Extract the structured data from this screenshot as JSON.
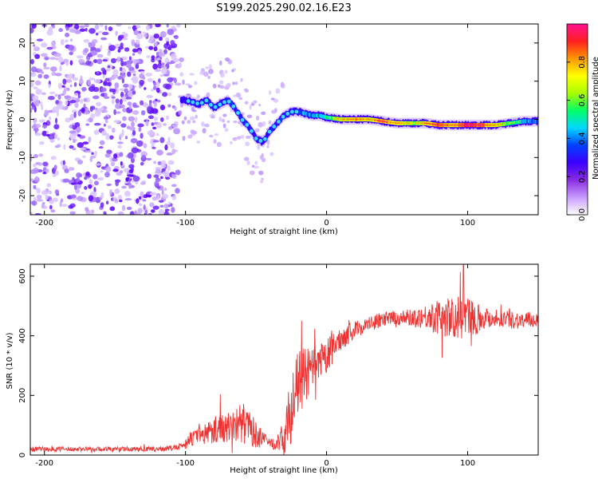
{
  "title": "S199.2025.290.02.16.E23",
  "chart_data": [
    {
      "type": "heatmap",
      "name": "spectrogram",
      "xlabel": "Height of straight line (km)",
      "ylabel": "Frequency (Hz)",
      "xlim": [
        -210,
        150
      ],
      "ylim": [
        -25,
        25
      ],
      "xticks": [
        -200,
        -100,
        0,
        100
      ],
      "yticks": [
        -20,
        -10,
        0,
        10,
        20
      ],
      "colorbar": {
        "label": "Normalized spectral amplitude",
        "range": [
          0,
          1
        ],
        "ticks": [
          "0.0",
          "0.2",
          "0.4",
          "0.6",
          "0.8"
        ],
        "colors": [
          "#ffffff",
          "#c89bff",
          "#8a2be2",
          "#3b00ff",
          "#0040ff",
          "#00d8ff",
          "#00ff66",
          "#a8ff00",
          "#ffff00",
          "#ff9900",
          "#ff2020",
          "#ff1090"
        ]
      },
      "noise_region_x": [
        -210,
        -105
      ],
      "ridge": {
        "x": [
          -100,
          -95,
          -90,
          -85,
          -80,
          -75,
          -70,
          -65,
          -60,
          -55,
          -50,
          -45,
          -40,
          -35,
          -30,
          -25,
          -20,
          -15,
          -10,
          -5,
          0,
          10,
          20,
          30,
          40,
          50,
          60,
          70,
          80,
          90,
          100,
          110,
          120,
          130,
          140,
          150
        ],
        "freq": [
          5,
          4.5,
          4,
          5,
          3,
          4,
          5,
          3,
          0,
          -2,
          -5,
          -6,
          -3,
          -1,
          1,
          2,
          2,
          1.5,
          1,
          1,
          0.5,
          0,
          0,
          0,
          -0.5,
          -1,
          -1,
          -1,
          -1.5,
          -1.5,
          -1.5,
          -1.5,
          -1.5,
          -1,
          -0.5,
          -0.5
        ],
        "amp": [
          0.25,
          0.3,
          0.25,
          0.3,
          0.3,
          0.35,
          0.35,
          0.3,
          0.3,
          0.3,
          0.25,
          0.2,
          0.25,
          0.3,
          0.3,
          0.35,
          0.35,
          0.4,
          0.4,
          0.45,
          0.5,
          0.65,
          0.75,
          0.7,
          0.8,
          0.7,
          0.6,
          0.7,
          0.85,
          0.7,
          0.95,
          0.85,
          0.7,
          0.55,
          0.45,
          0.35
        ]
      }
    },
    {
      "type": "line",
      "name": "snr",
      "xlabel": "Height of straight line (km)",
      "ylabel": "SNR (10 * v/v)",
      "xlim": [
        -210,
        150
      ],
      "ylim": [
        0,
        640
      ],
      "xticks": [
        -200,
        -100,
        0,
        100
      ],
      "yticks": [
        0,
        200,
        400,
        600
      ],
      "color": "#ee3333",
      "x": [
        -210,
        -180,
        -150,
        -120,
        -105,
        -100,
        -95,
        -90,
        -85,
        -80,
        -75,
        -70,
        -65,
        -60,
        -55,
        -50,
        -45,
        -40,
        -35,
        -30,
        -25,
        -20,
        -15,
        -10,
        -5,
        0,
        10,
        20,
        30,
        40,
        50,
        60,
        70,
        80,
        90,
        100,
        110,
        120,
        130,
        140,
        150
      ],
      "mean": [
        20,
        20,
        20,
        20,
        25,
        40,
        55,
        65,
        75,
        85,
        90,
        95,
        100,
        110,
        90,
        70,
        50,
        40,
        40,
        60,
        160,
        240,
        270,
        280,
        300,
        330,
        390,
        420,
        440,
        455,
        460,
        460,
        465,
        460,
        460,
        460,
        460,
        460,
        455,
        450,
        455
      ],
      "spread": [
        8,
        8,
        8,
        8,
        10,
        20,
        25,
        30,
        40,
        45,
        50,
        55,
        60,
        70,
        60,
        45,
        30,
        20,
        25,
        60,
        120,
        110,
        90,
        80,
        70,
        60,
        40,
        30,
        25,
        25,
        25,
        30,
        40,
        60,
        70,
        80,
        40,
        30,
        30,
        30,
        25
      ],
      "peak": {
        "x": 97,
        "y": 640
      }
    }
  ]
}
